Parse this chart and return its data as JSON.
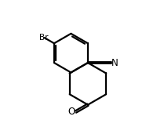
{
  "bg_color": "#ffffff",
  "line_color": "#000000",
  "lw": 1.6,
  "figsize": [
    2.0,
    1.76
  ],
  "dpi": 100,
  "xlim": [
    0,
    10
  ],
  "ylim": [
    0,
    8.8
  ],
  "benz_r": 1.25,
  "hex_r": 1.35,
  "br_label": "Br",
  "n_label": "N",
  "o_label": "O"
}
